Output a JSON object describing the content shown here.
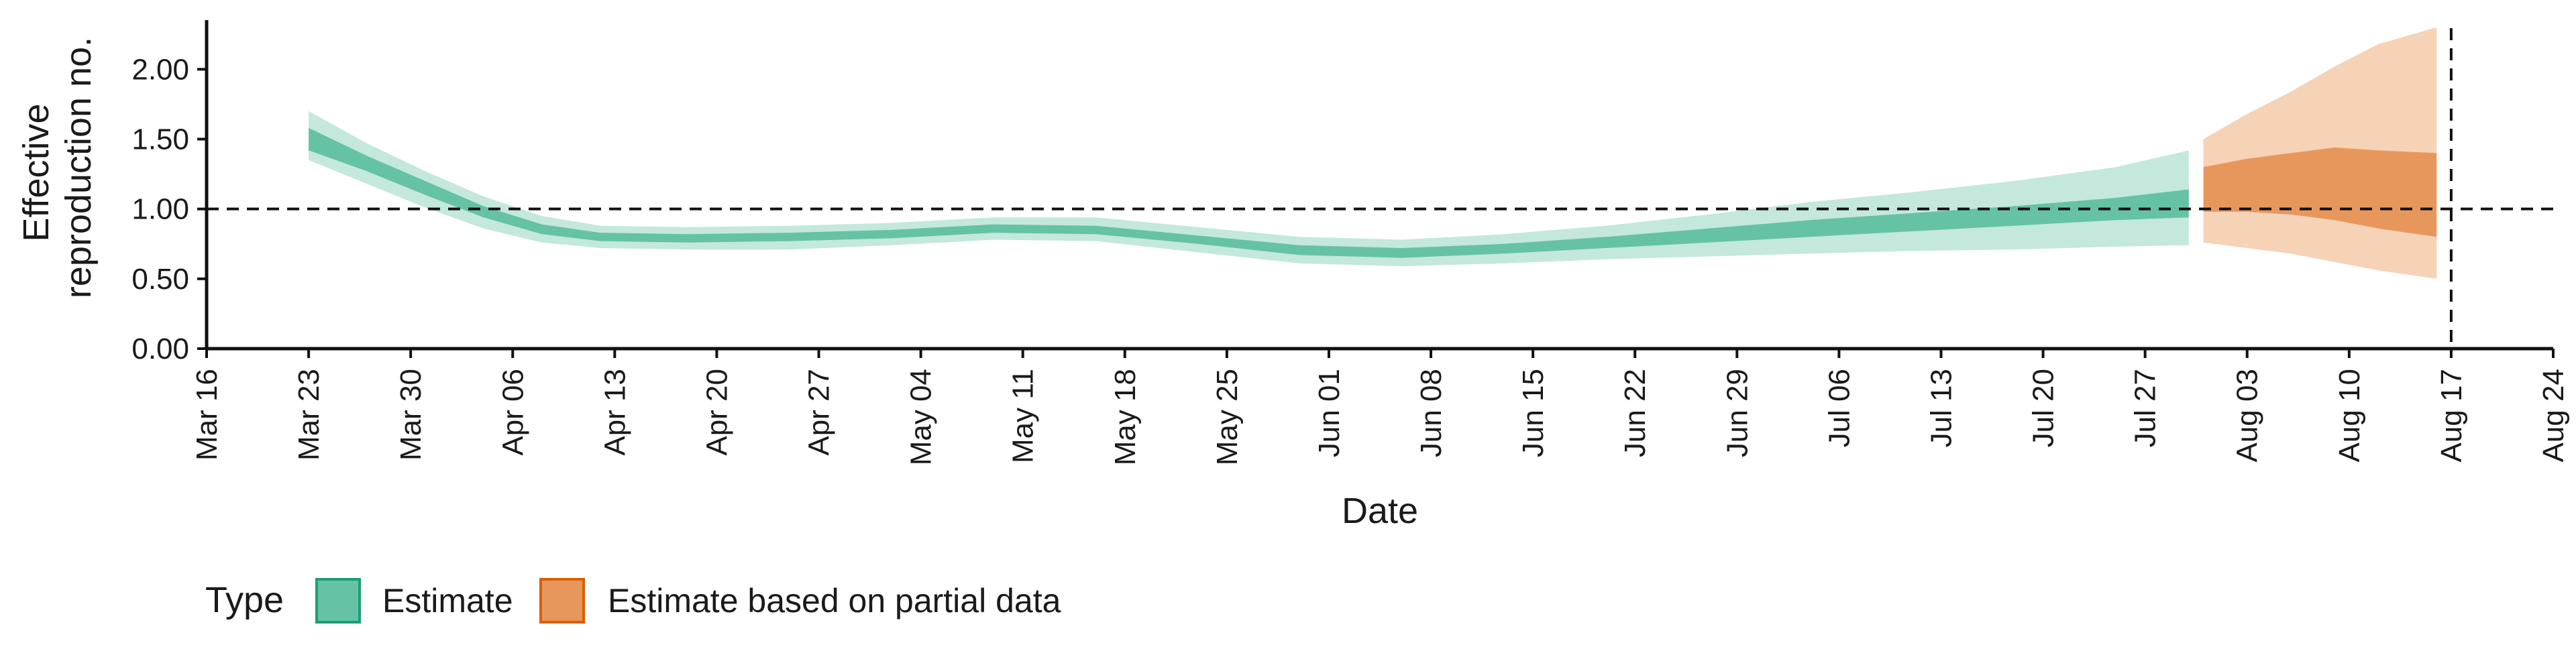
{
  "chart_data": {
    "type": "area",
    "title": "",
    "xlabel": "Date",
    "ylabel_lines": [
      "Effective",
      "reproduction no."
    ],
    "y_ticks": [
      "0.00",
      "0.50",
      "1.00",
      "1.50",
      "2.00"
    ],
    "y_tick_values": [
      0,
      0.5,
      1.0,
      1.5,
      2.0
    ],
    "ylim": [
      0,
      2.4
    ],
    "x_ticks": [
      "Mar 16",
      "Mar 23",
      "Mar 30",
      "Apr 06",
      "Apr 13",
      "Apr 20",
      "Apr 27",
      "May 04",
      "May 11",
      "May 18",
      "May 25",
      "Jun 01",
      "Jun 08",
      "Jun 15",
      "Jun 22",
      "Jun 29",
      "Jul 06",
      "Jul 13",
      "Jul 20",
      "Jul 27",
      "Aug 03",
      "Aug 10",
      "Aug 17",
      "Aug 24"
    ],
    "xlim": [
      "2020-03-16",
      "2020-08-24"
    ],
    "reference_line_y": 1.0,
    "reference_line_x": "2020-08-17",
    "grid": false,
    "legend": {
      "title": "Type",
      "position": "bottom-left",
      "items": [
        {
          "label": "Estimate",
          "fill": "#66c2a5",
          "border": "#1b9e77"
        },
        {
          "label": "Estimate based on partial data",
          "fill": "#e8975c",
          "border": "#d95f02"
        }
      ]
    },
    "colors": {
      "estimate_inner": "#66c2a5",
      "estimate_outer": "#c4e8dc",
      "partial_inner": "#e8975c",
      "partial_outer": "#f6d2b7",
      "reference_line": "#111111",
      "axis": "#111111"
    },
    "series": [
      {
        "name": "Estimate",
        "points": [
          {
            "x": "2020-03-23",
            "lo90": 1.35,
            "lo50": 1.42,
            "hi50": 1.58,
            "hi90": 1.7
          },
          {
            "x": "2020-03-27",
            "lo90": 1.18,
            "lo50": 1.27,
            "hi50": 1.38,
            "hi90": 1.47
          },
          {
            "x": "2020-03-31",
            "lo90": 1.01,
            "lo50": 1.1,
            "hi50": 1.2,
            "hi90": 1.27
          },
          {
            "x": "2020-04-04",
            "lo90": 0.86,
            "lo50": 0.94,
            "hi50": 1.02,
            "hi90": 1.09
          },
          {
            "x": "2020-04-08",
            "lo90": 0.76,
            "lo50": 0.82,
            "hi50": 0.89,
            "hi90": 0.95
          },
          {
            "x": "2020-04-12",
            "lo90": 0.72,
            "lo50": 0.77,
            "hi50": 0.83,
            "hi90": 0.88
          },
          {
            "x": "2020-04-18",
            "lo90": 0.71,
            "lo50": 0.76,
            "hi50": 0.82,
            "hi90": 0.87
          },
          {
            "x": "2020-04-25",
            "lo90": 0.71,
            "lo50": 0.77,
            "hi50": 0.83,
            "hi90": 0.88
          },
          {
            "x": "2020-05-02",
            "lo90": 0.74,
            "lo50": 0.79,
            "hi50": 0.85,
            "hi90": 0.9
          },
          {
            "x": "2020-05-09",
            "lo90": 0.78,
            "lo50": 0.83,
            "hi50": 0.89,
            "hi90": 0.94
          },
          {
            "x": "2020-05-16",
            "lo90": 0.77,
            "lo50": 0.82,
            "hi50": 0.88,
            "hi90": 0.94
          },
          {
            "x": "2020-05-23",
            "lo90": 0.69,
            "lo50": 0.75,
            "hi50": 0.81,
            "hi90": 0.87
          },
          {
            "x": "2020-05-30",
            "lo90": 0.61,
            "lo50": 0.67,
            "hi50": 0.74,
            "hi90": 0.8
          },
          {
            "x": "2020-06-06",
            "lo90": 0.59,
            "lo50": 0.65,
            "hi50": 0.72,
            "hi90": 0.78
          },
          {
            "x": "2020-06-13",
            "lo90": 0.61,
            "lo50": 0.68,
            "hi50": 0.75,
            "hi90": 0.82
          },
          {
            "x": "2020-06-20",
            "lo90": 0.64,
            "lo50": 0.72,
            "hi50": 0.8,
            "hi90": 0.88
          },
          {
            "x": "2020-06-27",
            "lo90": 0.66,
            "lo50": 0.76,
            "hi50": 0.86,
            "hi90": 0.96
          },
          {
            "x": "2020-07-04",
            "lo90": 0.68,
            "lo50": 0.8,
            "hi50": 0.92,
            "hi90": 1.05
          },
          {
            "x": "2020-07-11",
            "lo90": 0.7,
            "lo50": 0.84,
            "hi50": 0.97,
            "hi90": 1.12
          },
          {
            "x": "2020-07-18",
            "lo90": 0.71,
            "lo50": 0.88,
            "hi50": 1.02,
            "hi90": 1.2
          },
          {
            "x": "2020-07-25",
            "lo90": 0.73,
            "lo50": 0.92,
            "hi50": 1.08,
            "hi90": 1.3
          },
          {
            "x": "2020-07-30",
            "lo90": 0.74,
            "lo50": 0.94,
            "hi50": 1.14,
            "hi90": 1.42
          }
        ]
      },
      {
        "name": "Estimate based on partial data",
        "points": [
          {
            "x": "2020-07-31",
            "lo90": 0.76,
            "lo50": 0.98,
            "hi50": 1.3,
            "hi90": 1.5
          },
          {
            "x": "2020-08-03",
            "lo90": 0.72,
            "lo50": 0.98,
            "hi50": 1.36,
            "hi90": 1.68
          },
          {
            "x": "2020-08-06",
            "lo90": 0.68,
            "lo50": 0.96,
            "hi50": 1.4,
            "hi90": 1.84
          },
          {
            "x": "2020-08-09",
            "lo90": 0.62,
            "lo50": 0.92,
            "hi50": 1.44,
            "hi90": 2.02
          },
          {
            "x": "2020-08-12",
            "lo90": 0.56,
            "lo50": 0.86,
            "hi50": 1.42,
            "hi90": 2.18
          },
          {
            "x": "2020-08-16",
            "lo90": 0.5,
            "lo50": 0.8,
            "hi50": 1.4,
            "hi90": 2.3
          }
        ]
      }
    ]
  }
}
